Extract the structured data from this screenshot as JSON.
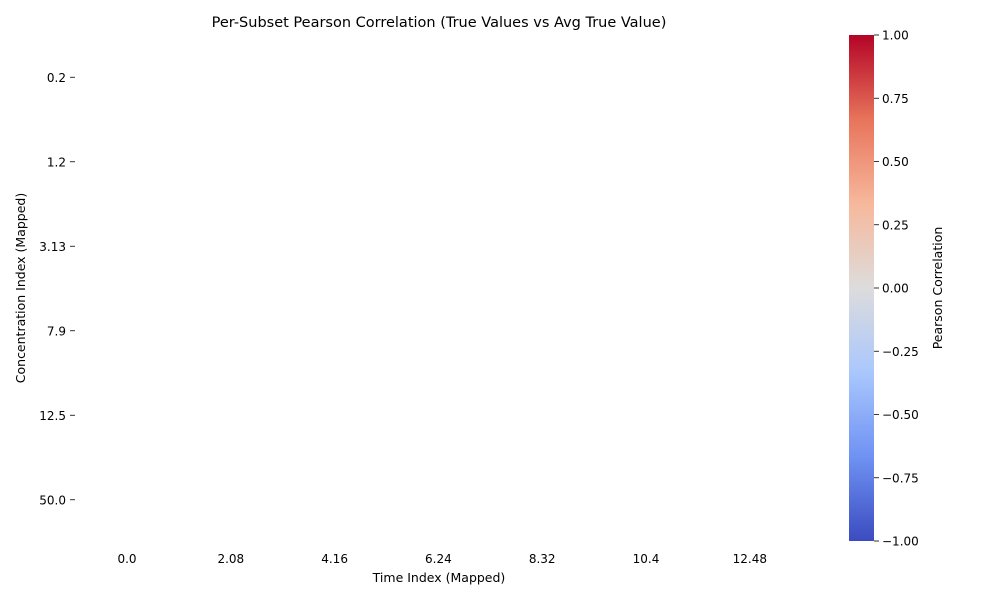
{
  "chart_data": {
    "type": "heatmap",
    "title": "Per-Subset Pearson Correlation (True Values vs Avg True Value)",
    "xlabel": "Time Index (Mapped)",
    "ylabel": "Concentration Index (Mapped)",
    "x_ticks": [
      "0.0",
      "2.08",
      "4.16",
      "6.24",
      "8.32",
      "10.4",
      "12.48"
    ],
    "y_ticks": [
      "0.2",
      "1.2",
      "3.13",
      "7.9",
      "12.5",
      "50.0"
    ],
    "values": [],
    "colorbar": {
      "label": "Pearson Correlation",
      "range": [
        -1.0,
        1.0
      ],
      "ticks": [
        "1.00",
        "0.75",
        "0.50",
        "0.25",
        "0.00",
        "−0.25",
        "−0.50",
        "−0.75",
        "−1.00"
      ],
      "colormap": "coolwarm",
      "colors": [
        "#3b4cc0",
        "#6f92f3",
        "#aac7fd",
        "#dddcdc",
        "#f7b89c",
        "#e7745b",
        "#b40426"
      ]
    },
    "grid": false
  }
}
